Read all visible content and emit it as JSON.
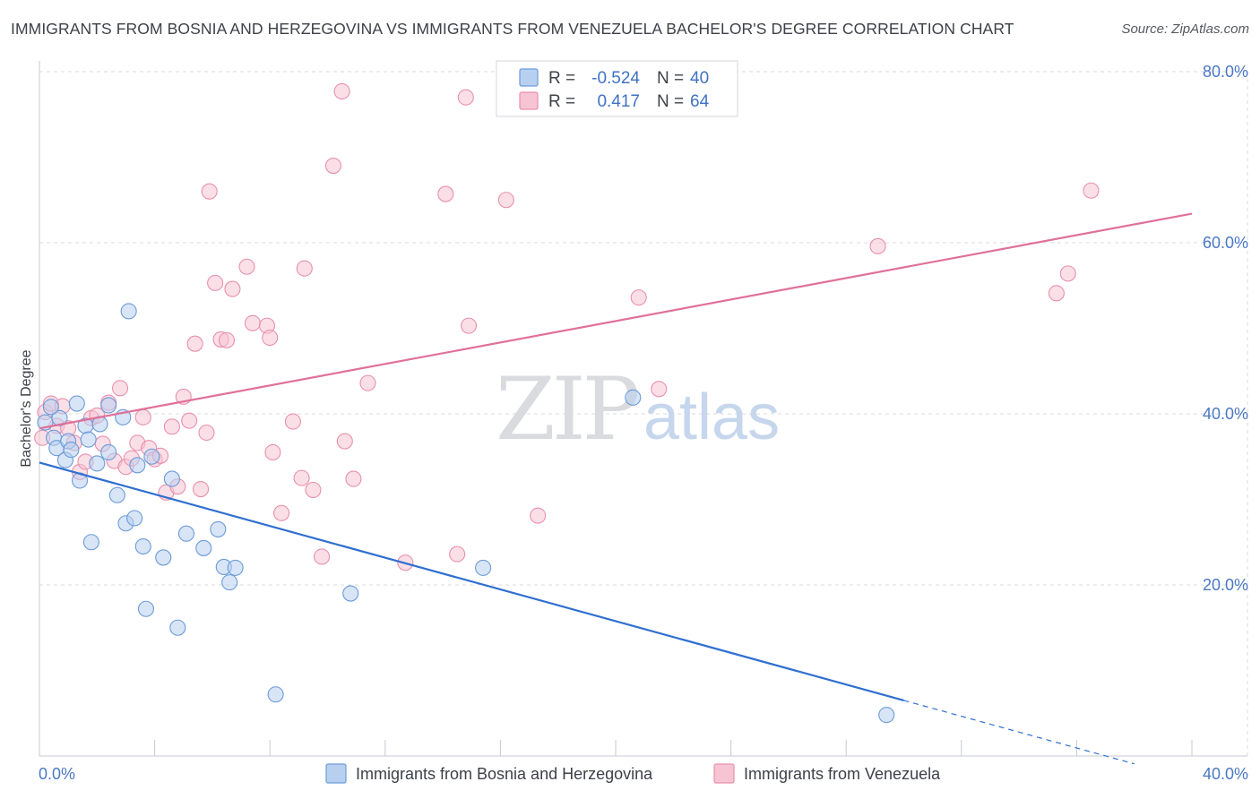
{
  "title": "IMMIGRANTS FROM BOSNIA AND HERZEGOVINA VS IMMIGRANTS FROM VENEZUELA BACHELOR'S DEGREE CORRELATION CHART",
  "source": "Source: ZipAtlas.com",
  "watermark": {
    "zip": "ZIP",
    "atlas": "atlas"
  },
  "colors": {
    "bosnia_fill": "#b8d0f0",
    "bosnia_stroke": "#6c9bd8",
    "bosnia_line": "#2f6fd0",
    "venezuela_fill": "#f7c4d4",
    "venezuela_stroke": "#e890ad",
    "venezuela_line": "#e0709a",
    "grid": "#d8dbe0",
    "axis": "#c7cad0"
  },
  "stats": {
    "r_label": "R =",
    "n_label": "N =",
    "bosnia": {
      "r": "-0.524",
      "n": "40"
    },
    "venezuela": {
      "r": "0.417",
      "n": "64"
    }
  },
  "chart_data": {
    "type": "scatter",
    "title": "IMMIGRANTS FROM BOSNIA AND HERZEGOVINA VS IMMIGRANTS FROM VENEZUELA BACHELOR'S DEGREE CORRELATION CHART",
    "xlabel": "",
    "ylabel": "Bachelor's Degree",
    "xlim": [
      0,
      40
    ],
    "ylim": [
      0,
      80
    ],
    "x_tick_labels": [
      {
        "value": 0,
        "label": "0.0%"
      },
      {
        "value": 40,
        "label": "40.0%"
      }
    ],
    "y_ticks": [
      {
        "value": 20,
        "label": "20.0%"
      },
      {
        "value": 40,
        "label": "40.0%"
      },
      {
        "value": 60,
        "label": "60.0%"
      },
      {
        "value": 80,
        "label": "80.0%"
      }
    ],
    "x_minor_ticks": [
      4,
      8,
      12,
      16,
      20,
      24,
      28,
      32,
      36
    ],
    "legend_position": "bottom",
    "series": [
      {
        "name": "Immigrants from Bosnia and Herzegovina",
        "key": "bosnia",
        "r": -0.524,
        "n": 40,
        "trend": {
          "x0": 0,
          "y0": 34.3,
          "x1": 30,
          "y1": 6.5,
          "dash_to_x": 38
        },
        "points": [
          [
            0.2,
            39.0
          ],
          [
            0.5,
            37.2
          ],
          [
            0.6,
            36.0
          ],
          [
            0.7,
            39.5
          ],
          [
            0.9,
            34.6
          ],
          [
            1.0,
            36.8
          ],
          [
            1.1,
            35.8
          ],
          [
            1.3,
            41.2
          ],
          [
            1.4,
            32.2
          ],
          [
            1.6,
            38.6
          ],
          [
            1.7,
            37.0
          ],
          [
            1.8,
            25.0
          ],
          [
            2.0,
            34.2
          ],
          [
            2.1,
            38.8
          ],
          [
            2.4,
            41.0
          ],
          [
            2.4,
            35.5
          ],
          [
            2.7,
            30.5
          ],
          [
            2.9,
            39.6
          ],
          [
            3.1,
            52.0
          ],
          [
            3.0,
            27.2
          ],
          [
            3.3,
            27.8
          ],
          [
            3.4,
            34.0
          ],
          [
            3.6,
            24.5
          ],
          [
            3.7,
            17.2
          ],
          [
            3.9,
            35.0
          ],
          [
            4.3,
            23.2
          ],
          [
            4.6,
            32.4
          ],
          [
            4.8,
            15.0
          ],
          [
            5.1,
            26.0
          ],
          [
            5.7,
            24.3
          ],
          [
            6.2,
            26.5
          ],
          [
            6.4,
            22.1
          ],
          [
            6.6,
            20.3
          ],
          [
            6.8,
            22.0
          ],
          [
            8.2,
            7.2
          ],
          [
            10.8,
            19.0
          ],
          [
            15.4,
            22.0
          ],
          [
            20.6,
            41.9
          ],
          [
            29.4,
            4.8
          ],
          [
            0.4,
            40.8
          ]
        ]
      },
      {
        "name": "Immigrants from Venezuela",
        "key": "venezuela",
        "r": 0.417,
        "n": 64,
        "trend": {
          "x0": 0,
          "y0": 38.3,
          "x1": 40,
          "y1": 63.4
        },
        "points": [
          [
            0.1,
            37.2
          ],
          [
            0.2,
            40.2
          ],
          [
            0.4,
            41.2
          ],
          [
            0.6,
            38.6
          ],
          [
            0.8,
            40.9
          ],
          [
            1.0,
            38.3
          ],
          [
            1.2,
            36.6
          ],
          [
            1.4,
            33.2
          ],
          [
            1.6,
            34.4
          ],
          [
            1.8,
            39.5
          ],
          [
            2.0,
            39.8
          ],
          [
            2.2,
            36.5
          ],
          [
            2.4,
            41.3
          ],
          [
            2.6,
            34.5
          ],
          [
            2.8,
            43.0
          ],
          [
            3.0,
            33.8
          ],
          [
            3.2,
            34.8
          ],
          [
            3.4,
            36.6
          ],
          [
            3.6,
            39.6
          ],
          [
            3.8,
            36.0
          ],
          [
            4.0,
            34.7
          ],
          [
            4.2,
            35.1
          ],
          [
            4.4,
            30.8
          ],
          [
            4.6,
            38.5
          ],
          [
            4.8,
            31.5
          ],
          [
            5.0,
            42.0
          ],
          [
            5.2,
            39.2
          ],
          [
            5.4,
            48.2
          ],
          [
            5.6,
            31.2
          ],
          [
            5.8,
            37.8
          ],
          [
            5.9,
            66.0
          ],
          [
            6.1,
            55.3
          ],
          [
            6.3,
            48.7
          ],
          [
            6.5,
            48.6
          ],
          [
            6.7,
            54.6
          ],
          [
            7.2,
            57.2
          ],
          [
            7.4,
            50.6
          ],
          [
            7.9,
            50.3
          ],
          [
            8.0,
            48.9
          ],
          [
            8.1,
            35.5
          ],
          [
            8.4,
            28.4
          ],
          [
            8.8,
            39.1
          ],
          [
            9.1,
            32.5
          ],
          [
            9.2,
            57.0
          ],
          [
            9.5,
            31.1
          ],
          [
            9.8,
            23.3
          ],
          [
            10.2,
            69.0
          ],
          [
            10.5,
            77.7
          ],
          [
            10.6,
            36.8
          ],
          [
            10.9,
            32.4
          ],
          [
            11.4,
            43.6
          ],
          [
            12.7,
            22.6
          ],
          [
            14.1,
            65.7
          ],
          [
            14.5,
            23.6
          ],
          [
            14.8,
            77.0
          ],
          [
            14.9,
            50.3
          ],
          [
            16.2,
            65.0
          ],
          [
            17.3,
            28.1
          ],
          [
            20.8,
            53.6
          ],
          [
            21.5,
            42.9
          ],
          [
            29.1,
            59.6
          ],
          [
            35.3,
            54.1
          ],
          [
            35.7,
            56.4
          ],
          [
            36.5,
            66.1
          ]
        ]
      }
    ]
  }
}
